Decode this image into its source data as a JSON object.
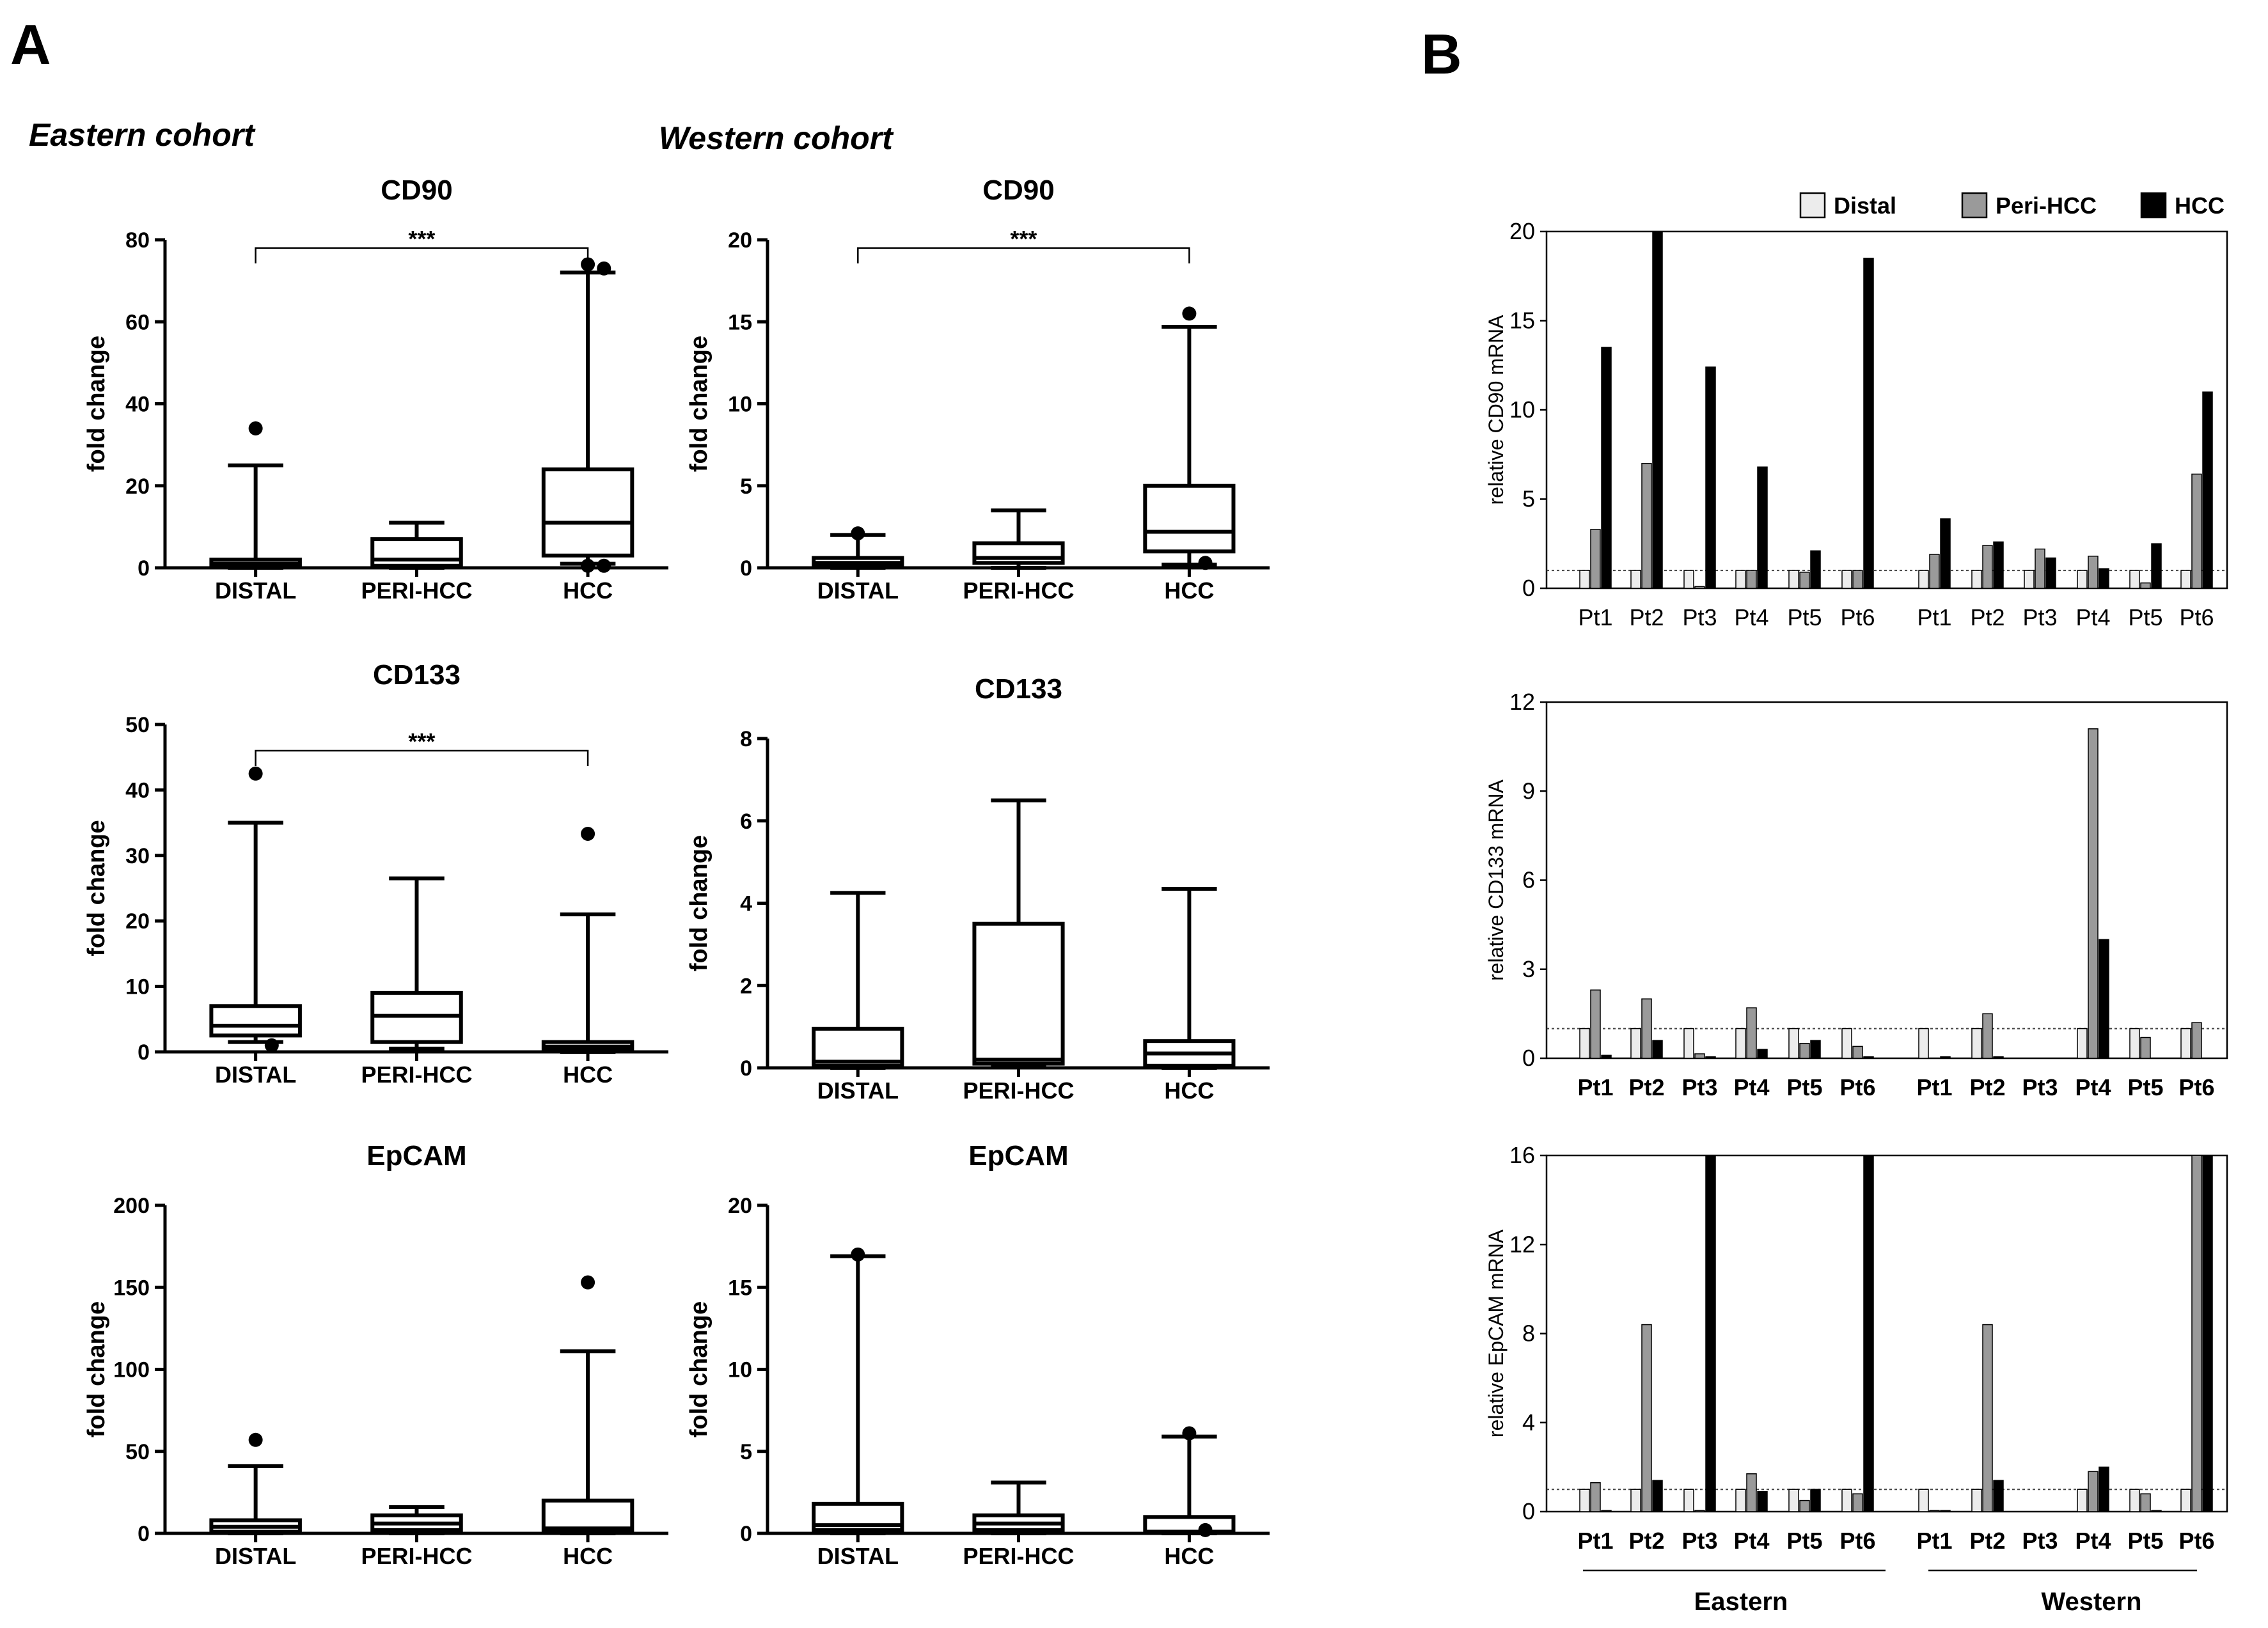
{
  "panel_labels": {
    "a": "A",
    "b": "B"
  },
  "cohorts": {
    "eastern": "Eastern cohort",
    "western": "Western cohort"
  },
  "chart_data": [
    {
      "type": "box",
      "panel": "A",
      "cohort": "Eastern cohort",
      "title": "CD90",
      "ylabel": "fold change",
      "ylim": [
        0,
        80
      ],
      "yticks": [
        "0",
        "20",
        "40",
        "60",
        "80"
      ],
      "categories": [
        "DISTAL",
        "PERI-HCC",
        "HCC"
      ],
      "boxes": [
        {
          "min": 0,
          "q1": 0.5,
          "median": 1,
          "q3": 2,
          "max": 25,
          "outliers": [
            34
          ]
        },
        {
          "min": 0,
          "q1": 0.5,
          "median": 2,
          "q3": 7,
          "max": 11,
          "outliers": []
        },
        {
          "min": 1,
          "q1": 3,
          "median": 11,
          "q3": 24,
          "max": 72,
          "outliers": [
            74,
            73,
            0.5,
            0.5
          ]
        }
      ],
      "significance": {
        "from": 0,
        "to": 2,
        "label": "***",
        "y": 78
      }
    },
    {
      "type": "box",
      "panel": "A",
      "cohort": "Western cohort",
      "title": "CD90",
      "ylabel": "fold change",
      "ylim": [
        0,
        20
      ],
      "yticks": [
        "0",
        "5",
        "10",
        "15",
        "20"
      ],
      "categories": [
        "DISTAL",
        "PERI-HCC",
        "HCC"
      ],
      "boxes": [
        {
          "min": 0,
          "q1": 0.1,
          "median": 0.3,
          "q3": 0.6,
          "max": 2,
          "outliers": [
            2.1
          ]
        },
        {
          "min": 0,
          "q1": 0.3,
          "median": 0.6,
          "q3": 1.5,
          "max": 3.5,
          "outliers": []
        },
        {
          "min": 0.2,
          "q1": 1,
          "median": 2.2,
          "q3": 5,
          "max": 14.7,
          "outliers": [
            15.5,
            0.3
          ]
        }
      ],
      "significance": {
        "from": 0,
        "to": 2,
        "label": "***",
        "y": 19.5
      }
    },
    {
      "type": "box",
      "panel": "A",
      "cohort": "Eastern cohort",
      "title": "CD133",
      "ylabel": "fold change",
      "ylim": [
        0,
        50
      ],
      "yticks": [
        "0",
        "10",
        "20",
        "30",
        "40",
        "50"
      ],
      "categories": [
        "DISTAL",
        "PERI-HCC",
        "HCC"
      ],
      "boxes": [
        {
          "min": 1.5,
          "q1": 2.5,
          "median": 4,
          "q3": 7,
          "max": 35,
          "outliers": [
            42.5,
            1
          ]
        },
        {
          "min": 0.5,
          "q1": 1.5,
          "median": 5.5,
          "q3": 9,
          "max": 26.5,
          "outliers": []
        },
        {
          "min": 0,
          "q1": 0.3,
          "median": 0.8,
          "q3": 1.5,
          "max": 21,
          "outliers": [
            33.3
          ]
        }
      ],
      "significance": {
        "from": 0,
        "to": 2,
        "label": "***",
        "y": 46
      }
    },
    {
      "type": "box",
      "panel": "A",
      "cohort": "Western cohort",
      "title": "CD133",
      "ylabel": "fold change",
      "ylim": [
        0,
        8
      ],
      "yticks": [
        "0",
        "2",
        "4",
        "6",
        "8"
      ],
      "categories": [
        "DISTAL",
        "PERI-HCC",
        "HCC"
      ],
      "boxes": [
        {
          "min": 0,
          "q1": 0.05,
          "median": 0.15,
          "q3": 0.95,
          "max": 4.25,
          "outliers": []
        },
        {
          "min": 0.05,
          "q1": 0.1,
          "median": 0.2,
          "q3": 3.5,
          "max": 6.5,
          "outliers": []
        },
        {
          "min": 0,
          "q1": 0.05,
          "median": 0.35,
          "q3": 0.65,
          "max": 4.35,
          "outliers": []
        }
      ],
      "significance": null
    },
    {
      "type": "box",
      "panel": "A",
      "cohort": "Eastern cohort",
      "title": "EpCAM",
      "ylabel": "fold change",
      "ylim": [
        0,
        200
      ],
      "yticks": [
        "0",
        "50",
        "100",
        "150",
        "200"
      ],
      "categories": [
        "DISTAL",
        "PERI-HCC",
        "HCC"
      ],
      "boxes": [
        {
          "min": 0,
          "q1": 1,
          "median": 4,
          "q3": 8,
          "max": 41,
          "outliers": [
            57
          ]
        },
        {
          "min": 0,
          "q1": 2,
          "median": 6,
          "q3": 11,
          "max": 16,
          "outliers": []
        },
        {
          "min": 0,
          "q1": 1,
          "median": 3,
          "q3": 20,
          "max": 111,
          "outliers": [
            153
          ]
        }
      ],
      "significance": null
    },
    {
      "type": "box",
      "panel": "A",
      "cohort": "Western cohort",
      "title": "EpCAM",
      "ylabel": "fold change",
      "ylim": [
        0,
        20
      ],
      "yticks": [
        "0",
        "5",
        "10",
        "15",
        "20"
      ],
      "categories": [
        "DISTAL",
        "PERI-HCC",
        "HCC"
      ],
      "boxes": [
        {
          "min": 0,
          "q1": 0.2,
          "median": 0.5,
          "q3": 1.8,
          "max": 16.9,
          "outliers": [
            17
          ]
        },
        {
          "min": 0,
          "q1": 0.2,
          "median": 0.6,
          "q3": 1.1,
          "max": 3.1,
          "outliers": []
        },
        {
          "min": 0,
          "q1": 0.05,
          "median": 0.1,
          "q3": 1,
          "max": 5.9,
          "outliers": [
            6.1,
            0.2
          ]
        }
      ],
      "significance": null
    },
    {
      "type": "bar",
      "panel": "B",
      "ylabel": "relative  CD90  mRNA",
      "ylim": [
        0,
        20
      ],
      "yticks": [
        "0",
        "5",
        "10",
        "15",
        "20"
      ],
      "bold_categories": false,
      "reference_line": 1,
      "groups": [
        "Eastern",
        "Western"
      ],
      "categories": [
        "Pt1",
        "Pt2",
        "Pt3",
        "Pt4",
        "Pt5",
        "Pt6"
      ],
      "series": [
        {
          "name": "Distal",
          "eastern": [
            1,
            1,
            1,
            1,
            1,
            1
          ],
          "western": [
            1,
            1,
            1,
            1,
            1,
            1
          ]
        },
        {
          "name": "Peri-HCC",
          "eastern": [
            3.3,
            7,
            0.1,
            1,
            0.9,
            1
          ],
          "western": [
            1.9,
            2.4,
            2.2,
            1.8,
            0.3,
            6.4
          ]
        },
        {
          "name": "HCC",
          "eastern": [
            13.5,
            20,
            12.4,
            6.8,
            2.1,
            18.5
          ],
          "western": [
            3.9,
            2.6,
            1.7,
            1.1,
            2.5,
            11
          ]
        }
      ]
    },
    {
      "type": "bar",
      "panel": "B",
      "ylabel": "relative  CD133  mRNA",
      "ylim": [
        0,
        12
      ],
      "yticks": [
        "0",
        "3",
        "6",
        "9",
        "12"
      ],
      "bold_categories": true,
      "reference_line": 1,
      "groups": [
        "Eastern",
        "Western"
      ],
      "categories": [
        "Pt1",
        "Pt2",
        "Pt3",
        "Pt4",
        "Pt5",
        "Pt6"
      ],
      "series": [
        {
          "name": "Distal",
          "eastern": [
            1,
            1,
            1,
            1,
            1,
            1
          ],
          "western": [
            1,
            1,
            0,
            1,
            1,
            1
          ]
        },
        {
          "name": "Peri-HCC",
          "eastern": [
            2.3,
            2,
            0.15,
            1.7,
            0.5,
            0.4
          ],
          "western": [
            0,
            1.5,
            0,
            11.1,
            0.7,
            1.2
          ]
        },
        {
          "name": "HCC",
          "eastern": [
            0.1,
            0.6,
            0.05,
            0.3,
            0.6,
            0.05
          ],
          "western": [
            0.05,
            0.05,
            0,
            4,
            0,
            0
          ]
        }
      ]
    },
    {
      "type": "bar",
      "panel": "B",
      "ylabel": "relative  EpCAM  mRNA",
      "ylim": [
        0,
        16
      ],
      "yticks": [
        "0",
        "4",
        "8",
        "12",
        "16"
      ],
      "bold_categories": true,
      "reference_line": 1,
      "groups": [
        "Eastern",
        "Western"
      ],
      "categories": [
        "Pt1",
        "Pt2",
        "Pt3",
        "Pt4",
        "Pt5",
        "Pt6"
      ],
      "series": [
        {
          "name": "Distal",
          "eastern": [
            1,
            1,
            1,
            1,
            1,
            1
          ],
          "western": [
            1,
            1,
            0,
            1,
            1,
            1
          ]
        },
        {
          "name": "Peri-HCC",
          "eastern": [
            1.3,
            8.4,
            0.05,
            1.7,
            0.5,
            0.8
          ],
          "western": [
            0.05,
            8.4,
            0,
            1.8,
            0.8,
            16
          ]
        },
        {
          "name": "HCC",
          "eastern": [
            0.05,
            1.4,
            16,
            0.9,
            1,
            16
          ],
          "western": [
            0.05,
            1.4,
            0,
            2,
            0.05,
            16
          ]
        }
      ]
    }
  ],
  "legend": [
    {
      "name": "Distal",
      "color": "#ececec"
    },
    {
      "name": "Peri-HCC",
      "color": "#9a9a9a"
    },
    {
      "name": "HCC",
      "color": "#000000"
    }
  ],
  "colors": {
    "distal": "#ececec",
    "peri": "#9a9a9a",
    "hcc": "#000000",
    "reference": "#444444"
  }
}
